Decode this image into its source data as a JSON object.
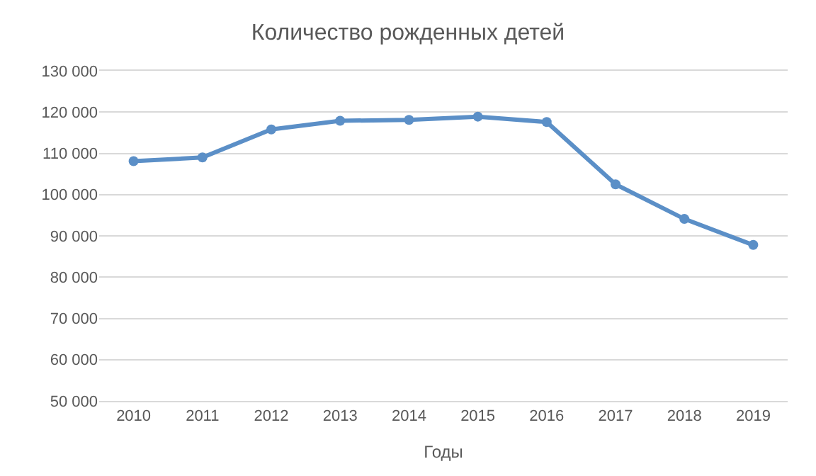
{
  "chart_data": {
    "type": "line",
    "title": "Количество рожденных детей",
    "xlabel": "Годы",
    "categories": [
      "2010",
      "2011",
      "2012",
      "2013",
      "2014",
      "2015",
      "2016",
      "2017",
      "2018",
      "2019"
    ],
    "series": [
      {
        "color": "#5b8fc7",
        "values": [
          108100,
          109000,
          115800,
          117900,
          118100,
          118900,
          117600,
          102500,
          94100,
          87800
        ]
      }
    ],
    "ylim": [
      50000,
      130000
    ],
    "yticks": [
      {
        "value": 50000,
        "label": "50 000"
      },
      {
        "value": 60000,
        "label": "60 000"
      },
      {
        "value": 70000,
        "label": "70 000"
      },
      {
        "value": 80000,
        "label": "80 000"
      },
      {
        "value": 90000,
        "label": "90 000"
      },
      {
        "value": 100000,
        "label": "100 000"
      },
      {
        "value": 110000,
        "label": "110 000"
      },
      {
        "value": 120000,
        "label": "120 000"
      },
      {
        "value": 130000,
        "label": "130 000"
      }
    ],
    "grid": "y",
    "marker": "circle",
    "line_style": "solid"
  }
}
